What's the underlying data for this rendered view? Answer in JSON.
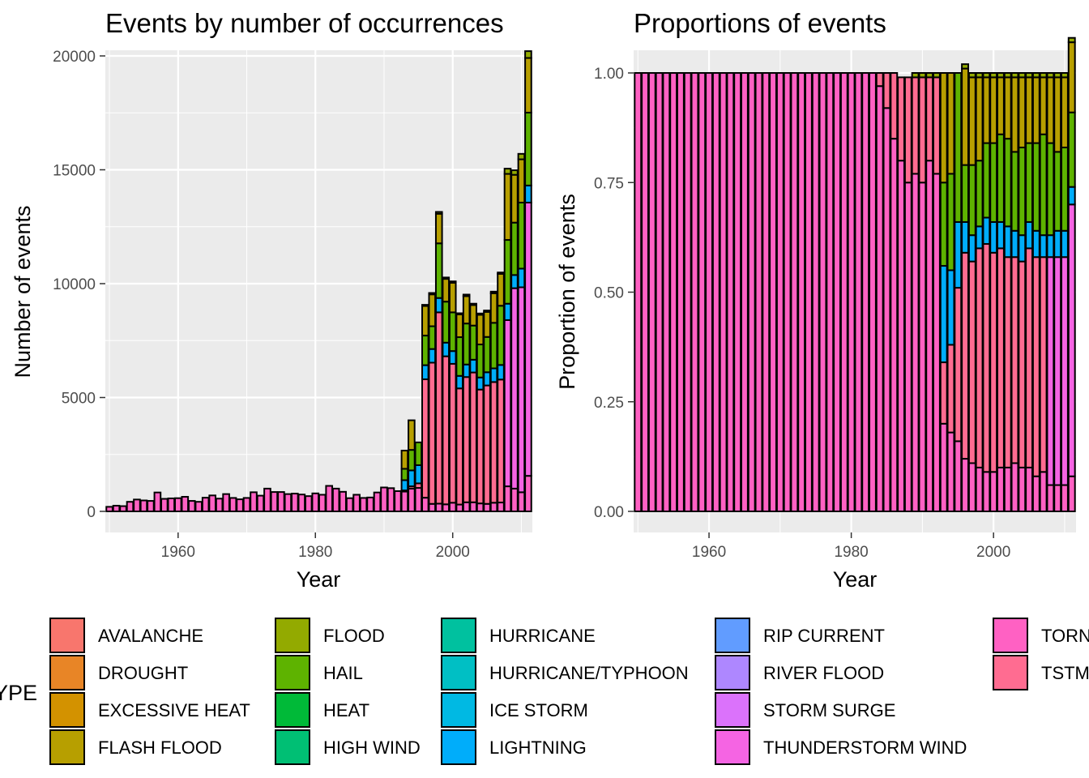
{
  "legend": {
    "title": "EVTYPE",
    "items": [
      {
        "label": "AVALANCHE",
        "color": "#F8766D"
      },
      {
        "label": "DROUGHT",
        "color": "#E88526"
      },
      {
        "label": "EXCESSIVE HEAT",
        "color": "#D39200"
      },
      {
        "label": "FLASH FLOOD",
        "color": "#B79F00"
      },
      {
        "label": "FLOOD",
        "color": "#93AA00"
      },
      {
        "label": "HAIL",
        "color": "#5EB300"
      },
      {
        "label": "HEAT",
        "color": "#00BA38"
      },
      {
        "label": "HIGH WIND",
        "color": "#00BF74"
      },
      {
        "label": "HURRICANE",
        "color": "#00C19F"
      },
      {
        "label": "HURRICANE/TYPHOON",
        "color": "#00BFC4"
      },
      {
        "label": "ICE STORM",
        "color": "#00B9E3"
      },
      {
        "label": "LIGHTNING",
        "color": "#00ADFA"
      },
      {
        "label": "RIP CURRENT",
        "color": "#619CFF"
      },
      {
        "label": "RIVER FLOOD",
        "color": "#AE87FF"
      },
      {
        "label": "STORM SURGE",
        "color": "#DB72FB"
      },
      {
        "label": "THUNDERSTORM WIND",
        "color": "#F564E3"
      },
      {
        "label": "TORNADO",
        "color": "#FF61C3"
      },
      {
        "label": "TSTM WIND",
        "color": "#FF6C91"
      }
    ]
  },
  "chart_data": [
    {
      "type": "bar",
      "stacked": true,
      "title": "Events by number of occurrences",
      "xlabel": "Year",
      "ylabel": "Number of events",
      "ylim": [
        0,
        20000
      ],
      "xlim": [
        1950,
        2011
      ],
      "xticks": [
        1960,
        1980,
        2000
      ],
      "yticks": [
        0,
        5000,
        10000,
        15000,
        20000
      ],
      "ytick_labels": [
        "0",
        "5000",
        "10000",
        "15000",
        "20000"
      ],
      "grid": true,
      "x": [
        1950,
        1951,
        1952,
        1953,
        1954,
        1955,
        1956,
        1957,
        1958,
        1959,
        1960,
        1961,
        1962,
        1963,
        1964,
        1965,
        1966,
        1967,
        1968,
        1969,
        1970,
        1971,
        1972,
        1973,
        1974,
        1975,
        1976,
        1977,
        1978,
        1979,
        1980,
        1981,
        1982,
        1983,
        1984,
        1985,
        1986,
        1987,
        1988,
        1989,
        1990,
        1991,
        1992,
        1993,
        1994,
        1995,
        1996,
        1997,
        1998,
        1999,
        2000,
        2001,
        2002,
        2003,
        2004,
        2005,
        2006,
        2007,
        2008,
        2009,
        2010,
        2011
      ],
      "series": [
        {
          "name": "TORNADO",
          "values": [
            200,
            250,
            230,
            420,
            520,
            480,
            460,
            830,
            550,
            570,
            580,
            640,
            460,
            420,
            600,
            700,
            560,
            760,
            590,
            530,
            590,
            840,
            690,
            1000,
            850,
            850,
            760,
            780,
            740,
            670,
            790,
            730,
            1120,
            1000,
            860,
            580,
            730,
            590,
            610,
            830,
            1050,
            1020,
            890,
            870,
            1000,
            1030,
            600,
            330,
            340,
            310,
            380,
            300,
            400,
            400,
            350,
            330,
            380,
            390,
            1100,
            1000,
            840,
            1560
          ]
        },
        {
          "name": "TSTM WIND",
          "values": [
            0,
            0,
            0,
            0,
            0,
            0,
            0,
            0,
            0,
            0,
            0,
            0,
            0,
            0,
            0,
            0,
            0,
            0,
            0,
            0,
            0,
            0,
            0,
            0,
            0,
            0,
            0,
            0,
            0,
            0,
            0,
            0,
            0,
            0,
            0,
            0,
            0,
            0,
            0,
            0,
            0,
            0,
            0,
            50,
            100,
            200,
            5200,
            6200,
            8400,
            6500,
            6100,
            5100,
            5500,
            5700,
            5000,
            5200,
            5300,
            5400,
            0,
            0,
            0,
            0
          ]
        },
        {
          "name": "THUNDERSTORM WIND",
          "values": [
            0,
            0,
            0,
            0,
            0,
            0,
            0,
            0,
            0,
            0,
            0,
            0,
            0,
            0,
            0,
            0,
            0,
            0,
            0,
            0,
            0,
            0,
            0,
            0,
            0,
            0,
            0,
            0,
            0,
            0,
            0,
            0,
            0,
            0,
            0,
            0,
            0,
            0,
            0,
            0,
            0,
            0,
            0,
            0,
            0,
            0,
            0,
            0,
            0,
            0,
            0,
            0,
            0,
            0,
            0,
            0,
            0,
            0,
            7300,
            8800,
            9000,
            12000
          ]
        },
        {
          "name": "LIGHTNING",
          "values": [
            0,
            0,
            0,
            0,
            0,
            0,
            0,
            0,
            0,
            0,
            0,
            0,
            0,
            0,
            0,
            0,
            0,
            0,
            0,
            0,
            0,
            0,
            0,
            0,
            0,
            0,
            0,
            0,
            0,
            0,
            0,
            0,
            0,
            0,
            0,
            0,
            0,
            0,
            0,
            0,
            0,
            0,
            0,
            450,
            700,
            800,
            620,
            600,
            630,
            600,
            560,
            550,
            550,
            560,
            530,
            580,
            600,
            640,
            720,
            580,
            820,
            750
          ]
        },
        {
          "name": "HAIL",
          "values": [
            0,
            0,
            0,
            0,
            0,
            0,
            0,
            0,
            0,
            0,
            0,
            0,
            0,
            0,
            0,
            0,
            0,
            0,
            0,
            0,
            0,
            0,
            0,
            0,
            0,
            0,
            0,
            0,
            0,
            0,
            0,
            0,
            0,
            0,
            0,
            0,
            0,
            0,
            0,
            0,
            0,
            0,
            0,
            500,
            900,
            1000,
            1300,
            1000,
            2400,
            1800,
            1700,
            1700,
            1800,
            1500,
            1450,
            1550,
            2000,
            2600,
            2800,
            2300,
            2900,
            3200
          ]
        },
        {
          "name": "FLASH FLOOD",
          "values": [
            0,
            0,
            0,
            0,
            0,
            0,
            0,
            0,
            0,
            0,
            0,
            0,
            0,
            0,
            0,
            0,
            0,
            0,
            0,
            0,
            0,
            0,
            0,
            0,
            0,
            0,
            0,
            0,
            0,
            0,
            0,
            0,
            0,
            0,
            0,
            0,
            0,
            0,
            0,
            0,
            0,
            0,
            0,
            800,
            1300,
            0,
            1300,
            1400,
            1300,
            1000,
            1300,
            1000,
            1200,
            900,
            1300,
            1100,
            1300,
            1400,
            2900,
            2100,
            1900,
            2400
          ]
        },
        {
          "name": "FLOOD",
          "values": [
            0,
            0,
            0,
            0,
            0,
            0,
            0,
            0,
            0,
            0,
            0,
            0,
            0,
            0,
            0,
            0,
            0,
            0,
            0,
            0,
            0,
            0,
            0,
            0,
            0,
            0,
            0,
            0,
            0,
            0,
            0,
            0,
            0,
            0,
            0,
            0,
            0,
            0,
            0,
            0,
            0,
            0,
            0,
            0,
            0,
            0,
            50,
            60,
            80,
            60,
            60,
            50,
            70,
            60,
            60,
            60,
            70,
            60,
            230,
            200,
            240,
            300
          ]
        }
      ]
    },
    {
      "type": "bar",
      "stacked": true,
      "title": "Proportions of events",
      "xlabel": "Year",
      "ylabel": "Proportion of events",
      "ylim": [
        0,
        1
      ],
      "xlim": [
        1950,
        2011
      ],
      "xticks": [
        1960,
        1980,
        2000
      ],
      "yticks": [
        0,
        0.25,
        0.5,
        0.75,
        1
      ],
      "ytick_labels": [
        "0.00",
        "0.25",
        "0.50",
        "0.75",
        "1.00"
      ],
      "grid": true,
      "x": [
        1950,
        1951,
        1952,
        1953,
        1954,
        1955,
        1956,
        1957,
        1958,
        1959,
        1960,
        1961,
        1962,
        1963,
        1964,
        1965,
        1966,
        1967,
        1968,
        1969,
        1970,
        1971,
        1972,
        1973,
        1974,
        1975,
        1976,
        1977,
        1978,
        1979,
        1980,
        1981,
        1982,
        1983,
        1984,
        1985,
        1986,
        1987,
        1988,
        1989,
        1990,
        1991,
        1992,
        1993,
        1994,
        1995,
        1996,
        1997,
        1998,
        1999,
        2000,
        2001,
        2002,
        2003,
        2004,
        2005,
        2006,
        2007,
        2008,
        2009,
        2010,
        2011
      ],
      "series": [
        {
          "name": "TORNADO",
          "values": [
            1,
            1,
            1,
            1,
            1,
            1,
            1,
            1,
            1,
            1,
            1,
            1,
            1,
            1,
            1,
            1,
            1,
            1,
            1,
            1,
            1,
            1,
            1,
            1,
            1,
            1,
            1,
            1,
            1,
            1,
            1,
            1,
            1,
            1,
            0.97,
            0.92,
            0.85,
            0.8,
            0.75,
            0.77,
            0.75,
            0.8,
            0.77,
            0.2,
            0.18,
            0.16,
            0.12,
            0.11,
            0.1,
            0.09,
            0.09,
            0.1,
            0.1,
            0.11,
            0.1,
            0.1,
            0.08,
            0.09,
            0.06,
            0.06,
            0.06,
            0.08
          ]
        },
        {
          "name": "TSTM WIND",
          "values": [
            0,
            0,
            0,
            0,
            0,
            0,
            0,
            0,
            0,
            0,
            0,
            0,
            0,
            0,
            0,
            0,
            0,
            0,
            0,
            0,
            0,
            0,
            0,
            0,
            0,
            0,
            0,
            0,
            0,
            0,
            0,
            0,
            0,
            0,
            0.03,
            0.08,
            0.15,
            0.19,
            0.24,
            0.22,
            0.24,
            0.19,
            0.22,
            0.14,
            0.2,
            0.35,
            0.47,
            0.46,
            0.5,
            0.52,
            0.5,
            0.5,
            0.48,
            0.47,
            0.47,
            0.5,
            0.5,
            0.49,
            0,
            0,
            0,
            0
          ]
        },
        {
          "name": "THUNDERSTORM WIND",
          "values": [
            0,
            0,
            0,
            0,
            0,
            0,
            0,
            0,
            0,
            0,
            0,
            0,
            0,
            0,
            0,
            0,
            0,
            0,
            0,
            0,
            0,
            0,
            0,
            0,
            0,
            0,
            0,
            0,
            0,
            0,
            0,
            0,
            0,
            0,
            0,
            0,
            0,
            0,
            0,
            0,
            0,
            0,
            0,
            0,
            0,
            0,
            0,
            0,
            0,
            0,
            0,
            0,
            0,
            0,
            0,
            0,
            0,
            0,
            0.52,
            0.52,
            0.52,
            0.62
          ]
        },
        {
          "name": "LIGHTNING",
          "values": [
            0,
            0,
            0,
            0,
            0,
            0,
            0,
            0,
            0,
            0,
            0,
            0,
            0,
            0,
            0,
            0,
            0,
            0,
            0,
            0,
            0,
            0,
            0,
            0,
            0,
            0,
            0,
            0,
            0,
            0,
            0,
            0,
            0,
            0,
            0,
            0,
            0,
            0,
            0,
            0,
            0,
            0,
            0,
            0.22,
            0.17,
            0.15,
            0.07,
            0.06,
            0.05,
            0.06,
            0.07,
            0.06,
            0.07,
            0.06,
            0.06,
            0.06,
            0.06,
            0.05,
            0.05,
            0.06,
            0.06,
            0.04
          ]
        },
        {
          "name": "HAIL",
          "values": [
            0,
            0,
            0,
            0,
            0,
            0,
            0,
            0,
            0,
            0,
            0,
            0,
            0,
            0,
            0,
            0,
            0,
            0,
            0,
            0,
            0,
            0,
            0,
            0,
            0,
            0,
            0,
            0,
            0,
            0,
            0,
            0,
            0,
            0,
            0,
            0,
            0,
            0,
            0,
            0,
            0,
            0,
            0,
            0.19,
            0.22,
            0.34,
            0.13,
            0.16,
            0.15,
            0.17,
            0.18,
            0.2,
            0.2,
            0.18,
            0.2,
            0.18,
            0.2,
            0.23,
            0.21,
            0.18,
            0.19,
            0.17
          ]
        },
        {
          "name": "FLASH FLOOD",
          "values": [
            0,
            0,
            0,
            0,
            0,
            0,
            0,
            0,
            0,
            0,
            0,
            0,
            0,
            0,
            0,
            0,
            0,
            0,
            0,
            0,
            0,
            0,
            0,
            0,
            0,
            0,
            0,
            0,
            0,
            0,
            0,
            0,
            0,
            0,
            0,
            0,
            0,
            0,
            0,
            0,
            0,
            0,
            0,
            0.25,
            0.23,
            0,
            0.22,
            0.2,
            0.19,
            0.15,
            0.15,
            0.13,
            0.14,
            0.17,
            0.16,
            0.15,
            0.15,
            0.13,
            0.15,
            0.17,
            0.16,
            0.16
          ]
        },
        {
          "name": "FLOOD",
          "values": [
            0,
            0,
            0,
            0,
            0,
            0,
            0,
            0,
            0,
            0,
            0,
            0,
            0,
            0,
            0,
            0,
            0,
            0,
            0,
            0,
            0,
            0,
            0,
            0,
            0,
            0,
            0,
            0,
            0,
            0,
            0,
            0,
            0,
            0,
            0,
            0,
            0,
            0,
            0,
            0.01,
            0.01,
            0.01,
            0.01,
            0,
            0,
            0,
            0.01,
            0.01,
            0.01,
            0.01,
            0.01,
            0.01,
            0.01,
            0.01,
            0.01,
            0.01,
            0.01,
            0.01,
            0.01,
            0.01,
            0.01,
            0.01
          ]
        }
      ]
    }
  ]
}
